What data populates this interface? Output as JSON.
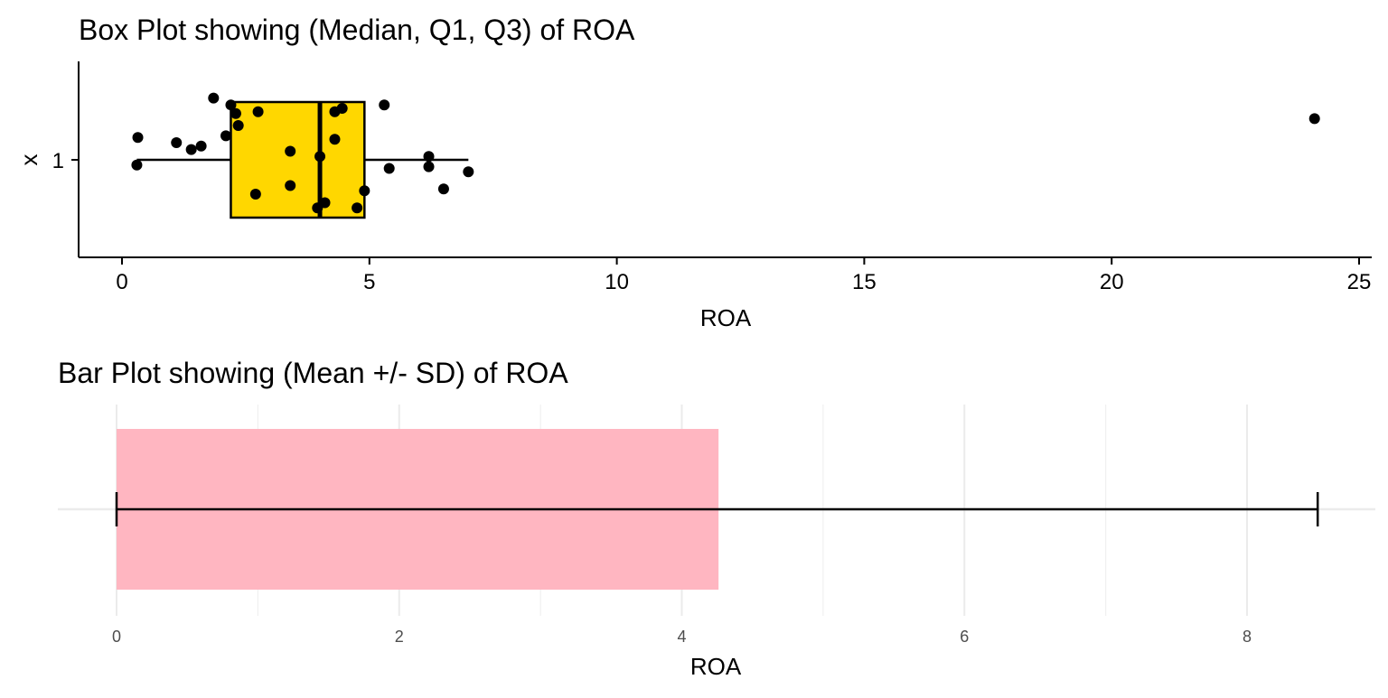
{
  "chart_data": [
    {
      "type": "box",
      "title": "Box Plot showing (Median, Q1, Q3) of ROA",
      "xlabel": "ROA",
      "ylabel": "x",
      "y_tick_labels": [
        "1"
      ],
      "xlim": [
        0,
        25
      ],
      "x_ticks": [
        0,
        5,
        10,
        15,
        20,
        25
      ],
      "grid": false,
      "box_fill": "#FFD700",
      "stats": {
        "whisker_low": 0.3,
        "q1": 2.2,
        "median": 4.0,
        "q3": 4.9,
        "whisker_high": 7.0
      },
      "outliers": [
        24.1
      ],
      "points": [
        {
          "x": 0.3,
          "y": 0.97
        },
        {
          "x": 0.32,
          "y": 1.13
        },
        {
          "x": 1.1,
          "y": 1.1
        },
        {
          "x": 1.4,
          "y": 1.06
        },
        {
          "x": 1.6,
          "y": 1.08
        },
        {
          "x": 1.85,
          "y": 1.36
        },
        {
          "x": 2.1,
          "y": 1.14
        },
        {
          "x": 2.2,
          "y": 1.32
        },
        {
          "x": 2.3,
          "y": 1.27
        },
        {
          "x": 2.35,
          "y": 1.2
        },
        {
          "x": 2.7,
          "y": 0.8
        },
        {
          "x": 2.75,
          "y": 1.28
        },
        {
          "x": 3.4,
          "y": 1.05
        },
        {
          "x": 3.4,
          "y": 0.85
        },
        {
          "x": 3.95,
          "y": 0.72
        },
        {
          "x": 4.0,
          "y": 1.02
        },
        {
          "x": 4.1,
          "y": 0.75
        },
        {
          "x": 4.3,
          "y": 1.28
        },
        {
          "x": 4.3,
          "y": 1.12
        },
        {
          "x": 4.45,
          "y": 1.3
        },
        {
          "x": 4.75,
          "y": 0.72
        },
        {
          "x": 4.9,
          "y": 0.82
        },
        {
          "x": 5.3,
          "y": 1.32
        },
        {
          "x": 5.4,
          "y": 0.95
        },
        {
          "x": 6.2,
          "y": 1.02
        },
        {
          "x": 6.2,
          "y": 0.96
        },
        {
          "x": 6.5,
          "y": 0.83
        },
        {
          "x": 7.0,
          "y": 0.93
        },
        {
          "x": 24.1,
          "y": 1.24
        }
      ]
    },
    {
      "type": "bar",
      "title": "Bar Plot showing (Mean +/- SD) of ROA",
      "xlabel": "ROA",
      "xlim": [
        0,
        8.9
      ],
      "x_ticks": [
        0,
        2,
        4,
        6,
        8
      ],
      "grid": true,
      "bar_color": "#FFB6C1",
      "mean": 4.26,
      "error_low": 0,
      "error_high": 8.5
    }
  ]
}
